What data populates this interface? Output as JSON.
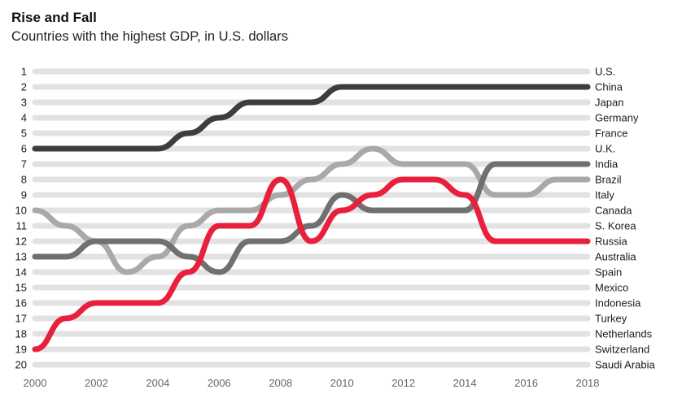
{
  "title": "Rise and Fall",
  "subtitle": "Countries with the highest GDP, in U.S. dollars",
  "colors": {
    "background_line": "#e2e2e2",
    "china": "#3d3d3d",
    "india": "#707070",
    "brazil": "#a9a9a9",
    "russia": "#e8203b",
    "axis_text": "#666666",
    "label_text": "#1a1a1a"
  },
  "chart_data": {
    "type": "bump",
    "title": "Rise and Fall",
    "subtitle": "Countries with the highest GDP, in U.S. dollars",
    "x": [
      2000,
      2001,
      2002,
      2003,
      2004,
      2005,
      2006,
      2007,
      2008,
      2009,
      2010,
      2011,
      2012,
      2013,
      2014,
      2015,
      2016,
      2017,
      2018
    ],
    "x_tick_labels": [
      "2000",
      "2002",
      "2004",
      "2006",
      "2008",
      "2010",
      "2012",
      "2014",
      "2016",
      "2018"
    ],
    "y_tick_labels": [
      "1",
      "2",
      "3",
      "4",
      "5",
      "6",
      "7",
      "8",
      "9",
      "10",
      "11",
      "12",
      "13",
      "14",
      "15",
      "16",
      "17",
      "18",
      "19",
      "20"
    ],
    "ylim": [
      1,
      20
    ],
    "rank_labels": [
      "U.S.",
      "China",
      "Japan",
      "Germany",
      "France",
      "U.K.",
      "India",
      "Brazil",
      "Italy",
      "Canada",
      "S. Korea",
      "Russia",
      "Australia",
      "Spain",
      "Mexico",
      "Indonesia",
      "Turkey",
      "Netherlands",
      "Switzerland",
      "Saudi Arabia"
    ],
    "series": [
      {
        "name": "Brazil",
        "color": "#a9a9a9",
        "highlight": true,
        "ranks": [
          10,
          11,
          12,
          14,
          13,
          11,
          10,
          10,
          9,
          8,
          7,
          6,
          7,
          7,
          7,
          9,
          9,
          8,
          8
        ]
      },
      {
        "name": "India",
        "color": "#707070",
        "highlight": true,
        "ranks": [
          13,
          13,
          12,
          12,
          12,
          13,
          14,
          12,
          12,
          11,
          9,
          10,
          10,
          10,
          10,
          7,
          7,
          7,
          7
        ]
      },
      {
        "name": "Russia",
        "color": "#e8203b",
        "highlight": true,
        "ranks": [
          19,
          17,
          16,
          16,
          16,
          14,
          11,
          11,
          8,
          12,
          10,
          9,
          8,
          8,
          9,
          12,
          12,
          12,
          12
        ]
      },
      {
        "name": "China",
        "color": "#3d3d3d",
        "highlight": true,
        "ranks": [
          6,
          6,
          6,
          6,
          6,
          5,
          4,
          3,
          3,
          3,
          2,
          2,
          2,
          2,
          2,
          2,
          2,
          2,
          2
        ]
      }
    ]
  }
}
